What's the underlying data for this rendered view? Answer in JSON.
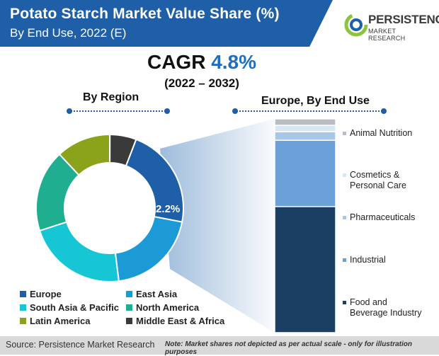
{
  "header": {
    "title": "Potato Starch Market Value Share (%)",
    "subtitle": "By End Use, 2022 (E)"
  },
  "logo": {
    "line1": "PERSISTENCE",
    "line2": "MARKET RESEARCH"
  },
  "cagr": {
    "label": "CAGR",
    "value": "4.8%",
    "range": "(2022 – 2032)"
  },
  "sections": {
    "left": "By Region",
    "right": "Europe, By End Use"
  },
  "chart_data": [
    {
      "type": "donut",
      "title": "By Region",
      "highlight_label": "22.2%",
      "categories": [
        "Europe",
        "East Asia",
        "South Asia & Pacific",
        "North America",
        "Latin America",
        "Middle East & Africa"
      ],
      "values": [
        22.2,
        20,
        22,
        18,
        12,
        5.8
      ],
      "colors": [
        "#1f5fa8",
        "#1b9ad6",
        "#16c6d4",
        "#1fae8f",
        "#8aa31a",
        "#3a3a3a"
      ]
    },
    {
      "type": "stacked_bar",
      "title": "Europe, By End Use",
      "categories": [
        "Food and Beverage Industry",
        "Industrial",
        "Pharmaceuticals",
        "Cosmetics & Personal Care",
        "Animal Nutrition"
      ],
      "values": [
        59,
        31,
        4,
        3,
        3
      ],
      "colors": [
        "#1b3f62",
        "#6ca0d8",
        "#a7c7ea",
        "#d9e6f3",
        "#b9bdc3"
      ]
    }
  ],
  "legend": [
    {
      "label": "Europe",
      "color": "#1f5fa8"
    },
    {
      "label": "East Asia",
      "color": "#1b9ad6"
    },
    {
      "label": "South Asia & Pacific",
      "color": "#16c6d4"
    },
    {
      "label": "North America",
      "color": "#1fae8f"
    },
    {
      "label": "Latin America",
      "color": "#8aa31a"
    },
    {
      "label": "Middle East & Africa",
      "color": "#3a3a3a"
    }
  ],
  "bar_labels": [
    {
      "lines": [
        "Animal Nutrition"
      ],
      "color": "#b9bdc3"
    },
    {
      "lines": [
        "Cosmetics &",
        "Personal Care"
      ],
      "color": "#d9e6f3"
    },
    {
      "lines": [
        "Pharmaceuticals"
      ],
      "color": "#a7c7ea"
    },
    {
      "lines": [
        "Industrial"
      ],
      "color": "#6ca0d8"
    },
    {
      "lines": [
        "Food and",
        "Beverage Industry"
      ],
      "color": "#1b3f62"
    }
  ],
  "footer": {
    "source": "Source: Persistence Market Research",
    "note": "Note: Market shares not depicted as per actual scale - only for illustration purposes"
  }
}
